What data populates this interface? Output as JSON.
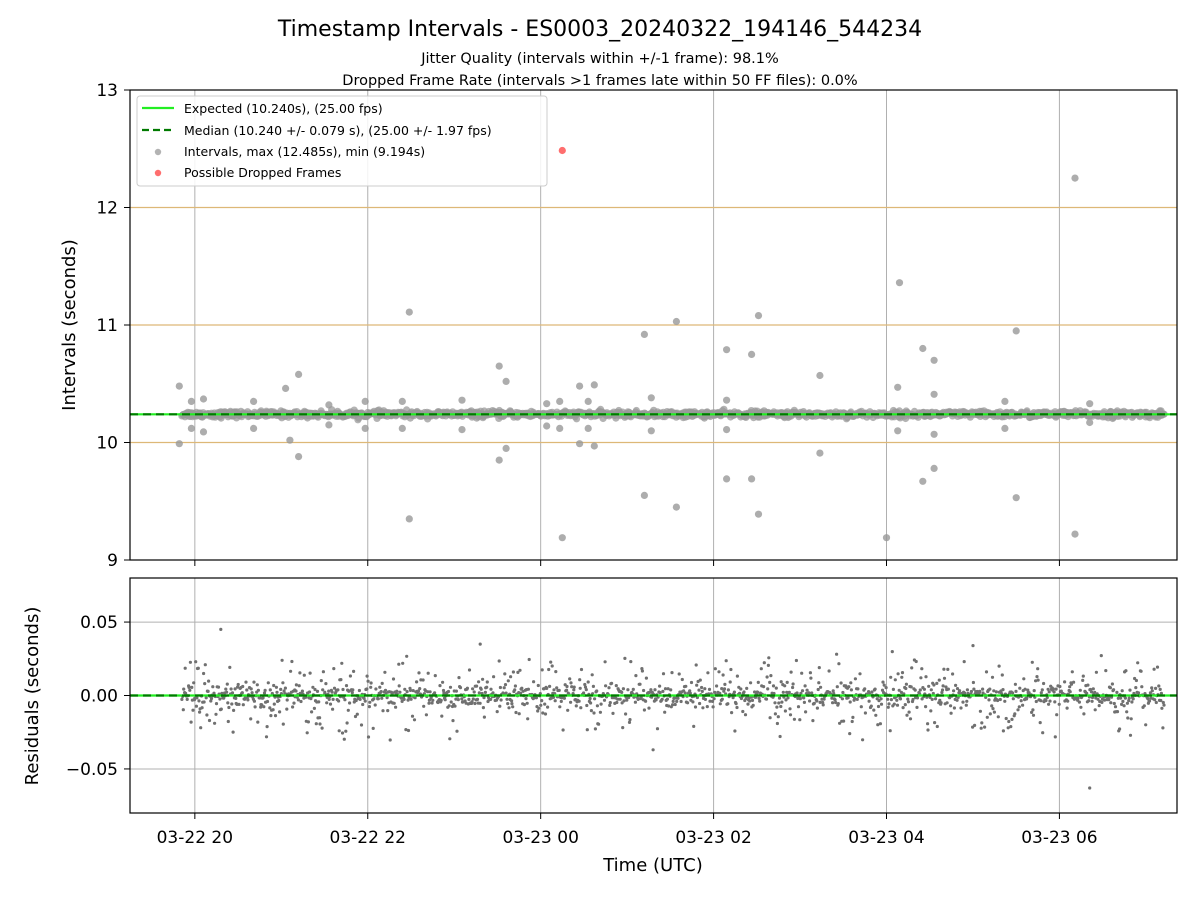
{
  "chart_data": [
    {
      "type": "scatter",
      "title": "Timestamp Intervals - ES0003_20240322_194146_544234",
      "subtitle_lines": [
        "Jitter Quality (intervals within +/-1 frame): 98.1%",
        "Dropped Frame Rate (intervals >1 frames late within 50 FF files): 0.0%"
      ],
      "xlabel": "",
      "ylabel": "Intervals (seconds)",
      "xlim_hours": [
        19.25,
        31.36
      ],
      "x_range_display": [
        "03-22 19:15",
        "03-23 07:21"
      ],
      "ylim": [
        9,
        13
      ],
      "yticks": [
        9,
        10,
        11,
        12,
        13
      ],
      "gridlines_y": [
        10,
        11,
        12
      ],
      "grid_x": true,
      "legend_placement": "top-left",
      "lines": [
        {
          "name": "Expected (10.240s), (25.00 fps)",
          "y": 10.24,
          "color": "#22ee22",
          "style": "solid"
        },
        {
          "name": "Median (10.240 +/- 0.079 s), (25.00 +/- 1.97 fps)",
          "y": 10.24,
          "color": "#007a00",
          "style": "dashed"
        }
      ],
      "series": [
        {
          "name": "Intervals, max (12.485s), min (9.194s)",
          "color": "#999999",
          "band": {
            "x_start": 19.85,
            "x_end": 31.21,
            "center": 10.24,
            "halfwidth": 0.03
          },
          "outliers": [
            [
              19.82,
              10.48
            ],
            [
              19.82,
              9.99
            ],
            [
              19.96,
              10.35
            ],
            [
              19.96,
              10.12
            ],
            [
              20.1,
              10.37
            ],
            [
              20.1,
              10.09
            ],
            [
              20.68,
              10.35
            ],
            [
              20.68,
              10.12
            ],
            [
              21.05,
              10.46
            ],
            [
              21.1,
              10.02
            ],
            [
              21.2,
              10.58
            ],
            [
              21.2,
              9.88
            ],
            [
              21.55,
              10.32
            ],
            [
              21.55,
              10.15
            ],
            [
              21.97,
              10.35
            ],
            [
              21.97,
              10.12
            ],
            [
              22.4,
              10.35
            ],
            [
              22.4,
              10.12
            ],
            [
              22.48,
              11.11
            ],
            [
              22.48,
              9.35
            ],
            [
              23.09,
              10.36
            ],
            [
              23.09,
              10.11
            ],
            [
              23.52,
              10.65
            ],
            [
              23.52,
              9.85
            ],
            [
              23.6,
              10.52
            ],
            [
              23.6,
              9.95
            ],
            [
              24.07,
              10.33
            ],
            [
              24.07,
              10.14
            ],
            [
              24.22,
              10.35
            ],
            [
              24.22,
              10.12
            ],
            [
              24.25,
              9.19
            ],
            [
              24.45,
              10.48
            ],
            [
              24.45,
              9.99
            ],
            [
              24.55,
              10.35
            ],
            [
              24.55,
              10.12
            ],
            [
              24.62,
              10.49
            ],
            [
              24.62,
              9.97
            ],
            [
              25.2,
              10.92
            ],
            [
              25.2,
              9.55
            ],
            [
              25.28,
              10.38
            ],
            [
              25.28,
              10.1
            ],
            [
              25.57,
              11.03
            ],
            [
              25.57,
              9.45
            ],
            [
              26.15,
              10.79
            ],
            [
              26.15,
              9.69
            ],
            [
              26.15,
              10.36
            ],
            [
              26.15,
              10.11
            ],
            [
              26.44,
              10.75
            ],
            [
              26.44,
              9.69
            ],
            [
              26.52,
              11.08
            ],
            [
              26.52,
              9.39
            ],
            [
              27.23,
              10.57
            ],
            [
              27.23,
              9.91
            ],
            [
              28.0,
              9.19
            ],
            [
              28.15,
              11.36
            ],
            [
              28.13,
              10.47
            ],
            [
              28.13,
              10.1
            ],
            [
              28.42,
              10.8
            ],
            [
              28.42,
              9.67
            ],
            [
              28.55,
              10.7
            ],
            [
              28.55,
              9.78
            ],
            [
              28.55,
              10.41
            ],
            [
              28.55,
              10.07
            ],
            [
              29.37,
              10.35
            ],
            [
              29.37,
              10.12
            ],
            [
              29.5,
              10.95
            ],
            [
              29.5,
              9.53
            ],
            [
              30.18,
              12.25
            ],
            [
              30.18,
              9.22
            ],
            [
              30.35,
              10.33
            ],
            [
              30.35,
              10.17
            ]
          ]
        },
        {
          "name": "Possible Dropped Frames",
          "color": "#ff5555",
          "points": [
            [
              24.25,
              12.485
            ]
          ]
        }
      ]
    },
    {
      "type": "scatter",
      "title": "",
      "xlabel": "Time (UTC)",
      "ylabel": "Residuals (seconds)",
      "xlim_hours": [
        19.25,
        31.36
      ],
      "ylim": [
        -0.08,
        0.08
      ],
      "yticks": [
        -0.05,
        0.0,
        0.05
      ],
      "ytick_labels": [
        "−0.05",
        "0.00",
        "0.05"
      ],
      "xticks_hours": [
        20,
        22,
        24,
        26,
        28,
        30
      ],
      "xtick_labels": [
        "03-22 20",
        "03-22 22",
        "03-23 00",
        "03-23 02",
        "03-23 04",
        "03-23 06"
      ],
      "grid_x": true,
      "grid_y": true,
      "lines": [
        {
          "y": 0.0,
          "color": "#22ee22",
          "style": "solid"
        },
        {
          "y": 0.0,
          "color": "#007a00",
          "style": "dashed"
        }
      ],
      "series": [
        {
          "name": "Residuals",
          "color": "#707070",
          "band": {
            "x_start": 19.85,
            "x_end": 31.21,
            "core_halfwidth": 0.008,
            "spread_halfwidth": 0.032
          },
          "extremes": [
            [
              20.3,
              0.045
            ],
            [
              30.35,
              -0.063
            ],
            [
              23.3,
              0.035
            ],
            [
              29.0,
              0.034
            ],
            [
              25.3,
              -0.037
            ]
          ]
        }
      ]
    }
  ]
}
